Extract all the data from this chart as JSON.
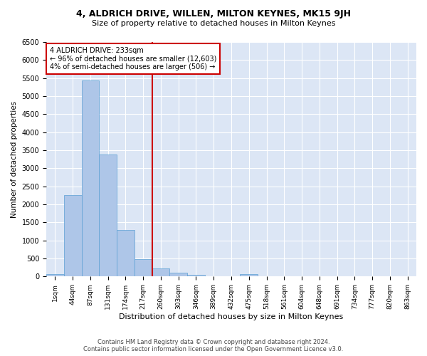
{
  "title": "4, ALDRICH DRIVE, WILLEN, MILTON KEYNES, MK15 9JH",
  "subtitle": "Size of property relative to detached houses in Milton Keynes",
  "xlabel": "Distribution of detached houses by size in Milton Keynes",
  "ylabel": "Number of detached properties",
  "footer_line1": "Contains HM Land Registry data © Crown copyright and database right 2024.",
  "footer_line2": "Contains public sector information licensed under the Open Government Licence v3.0.",
  "annotation_line1": "4 ALDRICH DRIVE: 233sqm",
  "annotation_line2": "← 96% of detached houses are smaller (12,603)",
  "annotation_line3": "4% of semi-detached houses are larger (506) →",
  "bin_labels": [
    "1sqm",
    "44sqm",
    "87sqm",
    "131sqm",
    "174sqm",
    "217sqm",
    "260sqm",
    "303sqm",
    "346sqm",
    "389sqm",
    "432sqm",
    "475sqm",
    "518sqm",
    "561sqm",
    "604sqm",
    "648sqm",
    "691sqm",
    "734sqm",
    "777sqm",
    "820sqm",
    "863sqm"
  ],
  "bar_values": [
    75,
    2250,
    5430,
    3380,
    1290,
    480,
    220,
    100,
    55,
    0,
    0,
    60,
    0,
    0,
    0,
    0,
    0,
    0,
    0,
    0,
    0
  ],
  "bar_color": "#aec6e8",
  "bar_edge_color": "#5a9fd4",
  "vline_x": 5.5,
  "vline_color": "#cc0000",
  "annotation_box_color": "#cc0000",
  "background_color": "#dce6f5",
  "ylim": [
    0,
    6500
  ],
  "yticks": [
    0,
    500,
    1000,
    1500,
    2000,
    2500,
    3000,
    3500,
    4000,
    4500,
    5000,
    5500,
    6000,
    6500
  ]
}
